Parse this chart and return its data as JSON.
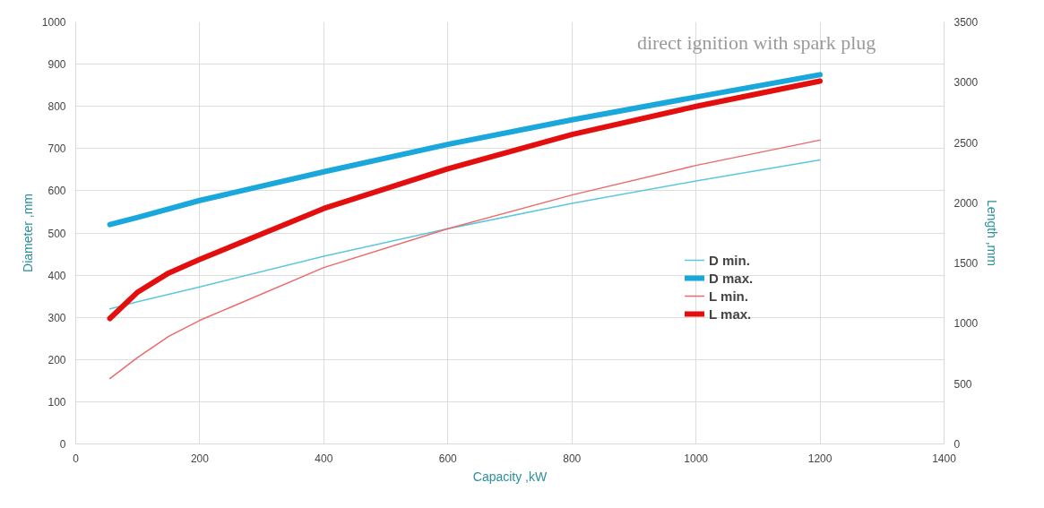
{
  "chart_data": {
    "type": "line",
    "xlabel": "Capacity ,kW",
    "ylabel": "Diameter ,mm",
    "y2label": "Length ,mm",
    "annotations": [
      "direct ignition with spark plug"
    ],
    "xlim": [
      0,
      1400
    ],
    "xticks": [
      0,
      200,
      400,
      600,
      800,
      1000,
      1200,
      1400
    ],
    "ylim": [
      0,
      1000
    ],
    "yticks": [
      0,
      100,
      200,
      300,
      400,
      500,
      600,
      700,
      800,
      900,
      1000
    ],
    "y2lim": [
      0,
      3500
    ],
    "y2ticks": [
      0,
      500,
      1000,
      1500,
      2000,
      2500,
      3000,
      3500
    ],
    "grid": true,
    "legend": "right",
    "line_style": "solid",
    "marker": "none",
    "series": [
      {
        "name": "D min.",
        "color": "#5bc8e0",
        "x": [
          55,
          100,
          200,
          400,
          600,
          800,
          1000,
          1200
        ],
        "values": [
          320,
          337,
          372,
          445,
          510,
          570,
          623,
          673
        ]
      },
      {
        "name": "D max.",
        "color": "#19a7dc",
        "x": [
          55,
          100,
          200,
          400,
          600,
          800,
          1000,
          1200
        ],
        "values": [
          520,
          537,
          577,
          645,
          710,
          768,
          822,
          875
        ]
      },
      {
        "name": "L min.",
        "color": "#ec6a6a",
        "axis": "y2",
        "x": [
          55,
          100,
          150,
          200,
          400,
          600,
          800,
          1000,
          1200
        ],
        "values": [
          542,
          718,
          893,
          1025,
          1463,
          1785,
          2065,
          2310,
          2520
        ]
      },
      {
        "name": "L max.",
        "color": "#e30f0f",
        "axis": "y2",
        "x": [
          55,
          100,
          150,
          200,
          400,
          600,
          800,
          1000,
          1200
        ],
        "values": [
          1040,
          1260,
          1418,
          1530,
          1953,
          2282,
          2566,
          2800,
          3010
        ]
      }
    ]
  }
}
